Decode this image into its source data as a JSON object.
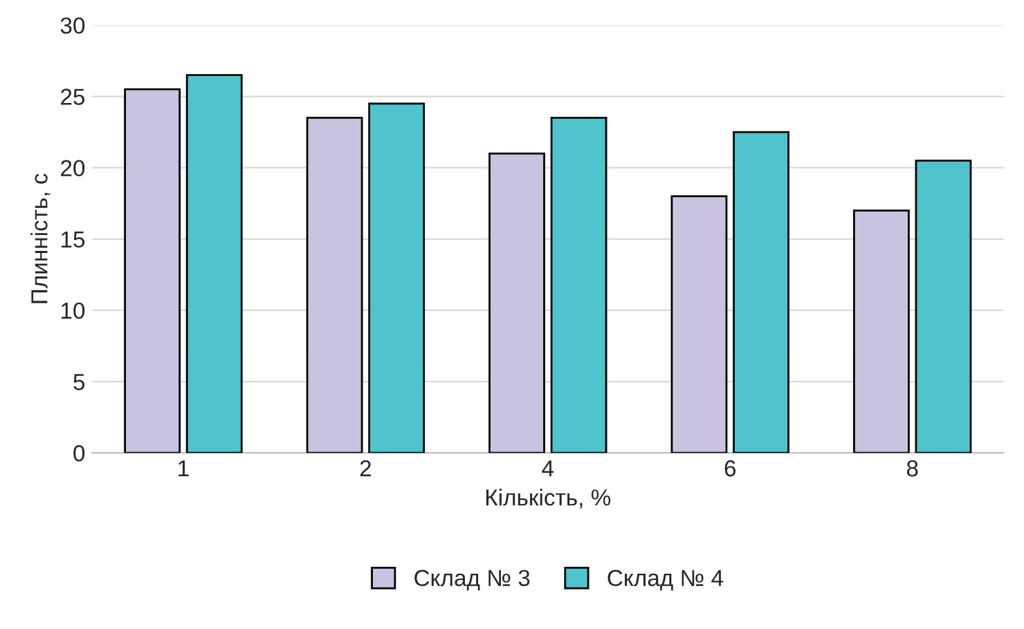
{
  "chart_data": {
    "type": "bar",
    "xlabel": "Кількість, %",
    "ylabel": "Плинність, с",
    "categories": [
      "1",
      "2",
      "4",
      "6",
      "8"
    ],
    "series": [
      {
        "name": "Склад № 3",
        "color": "#c9c3e0",
        "values": [
          25.5,
          23.5,
          21,
          18,
          17
        ]
      },
      {
        "name": "Склад № 4",
        "color": "#4fc4cc",
        "values": [
          26.5,
          24.5,
          23.5,
          22.5,
          20.5
        ]
      }
    ],
    "ylim": [
      0,
      30
    ],
    "yticks": [
      0,
      5,
      10,
      15,
      20,
      25,
      30
    ],
    "grid": "y",
    "legend": "bottom"
  }
}
